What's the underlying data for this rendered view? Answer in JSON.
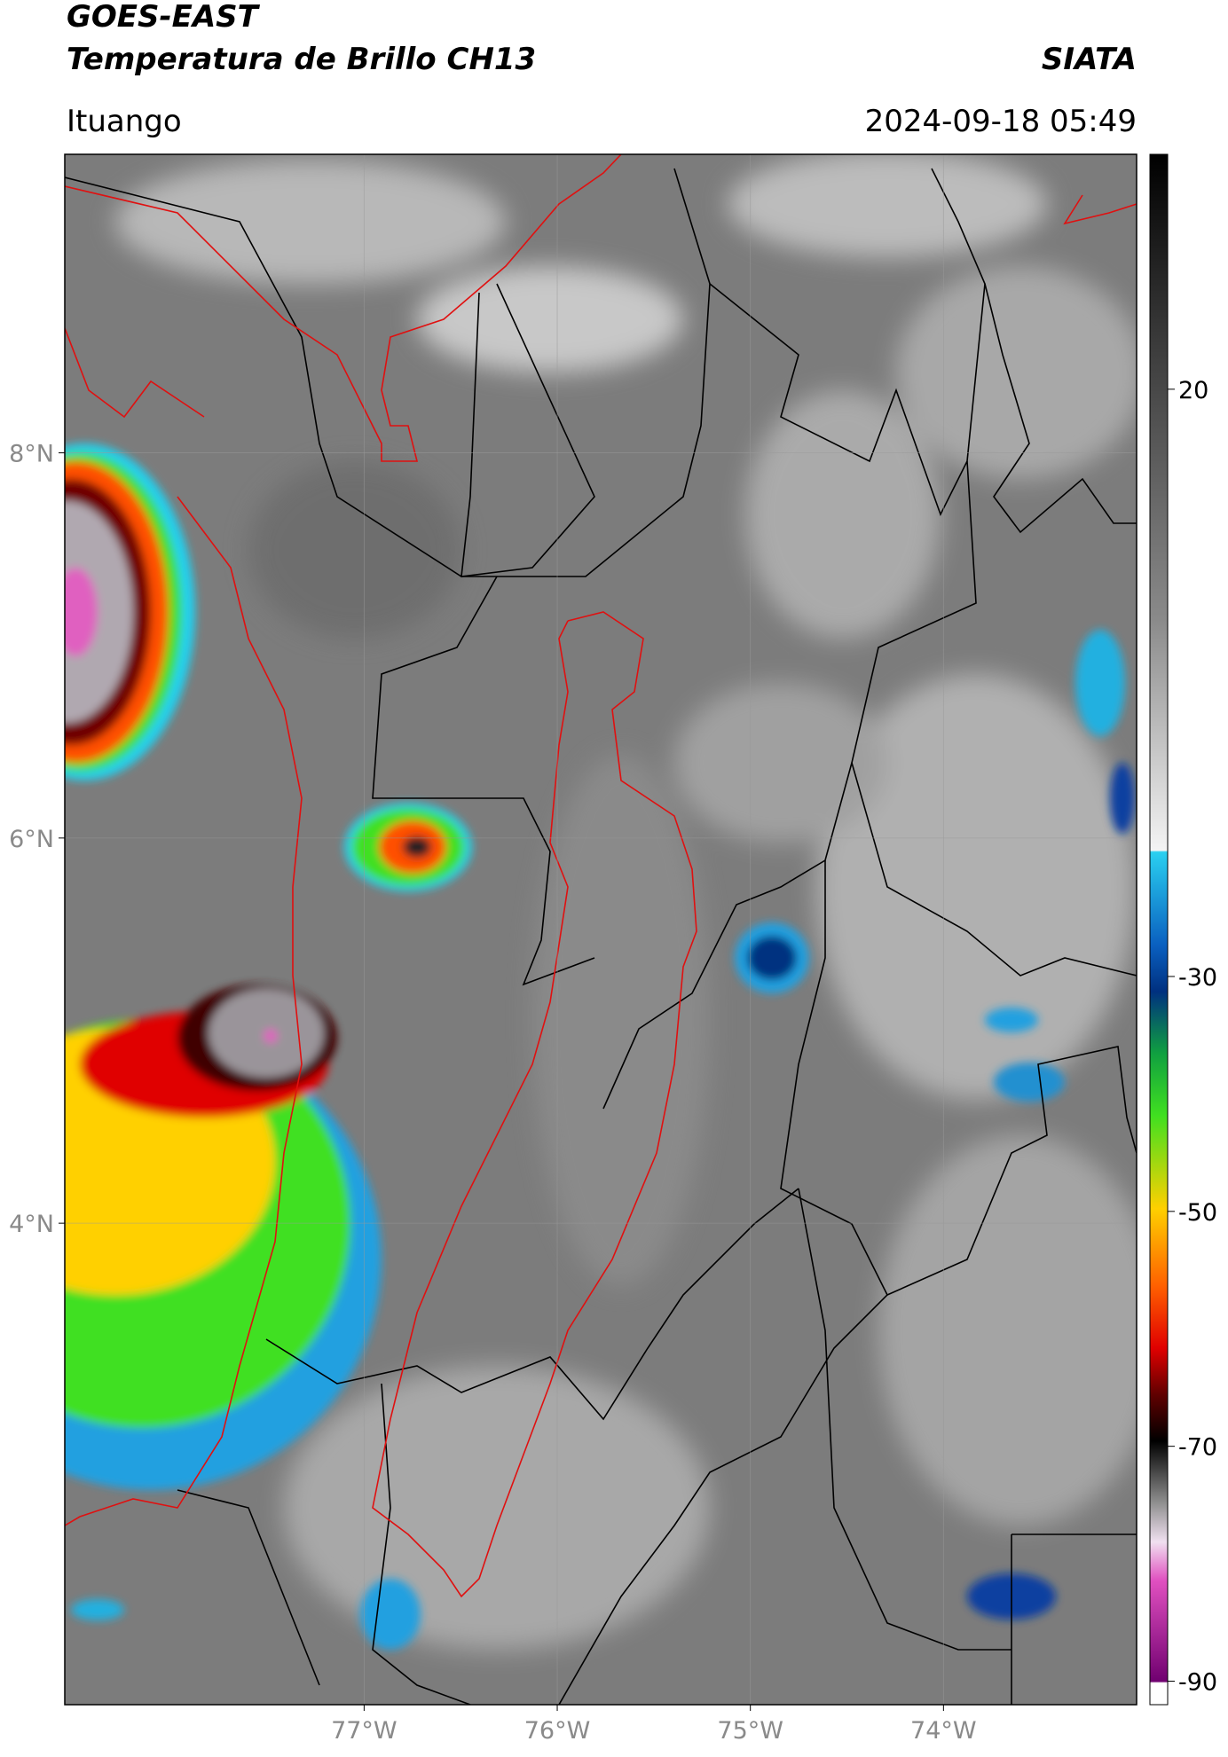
{
  "header": {
    "title": "GOES-EAST",
    "subtitle": "Temperatura de Brillo CH13",
    "source": "SIATA",
    "location": "Ituango",
    "datetime": "2024-09-18 05:49"
  },
  "map": {
    "xlim": [
      -78.55,
      -73.0
    ],
    "ylim": [
      1.5,
      9.55
    ],
    "xticks": [
      {
        "value": -77,
        "label": "77°W"
      },
      {
        "value": -76,
        "label": "76°W"
      },
      {
        "value": -75,
        "label": "75°W"
      },
      {
        "value": -74,
        "label": "74°W"
      }
    ],
    "yticks": [
      {
        "value": 8,
        "label": "8°N"
      },
      {
        "value": 6,
        "label": "6°N"
      },
      {
        "value": 4,
        "label": "4°N"
      }
    ]
  },
  "colorbar": {
    "lim": [
      -92,
      40
    ],
    "ticks": [
      20,
      -30,
      -50,
      -70,
      -90
    ]
  }
}
